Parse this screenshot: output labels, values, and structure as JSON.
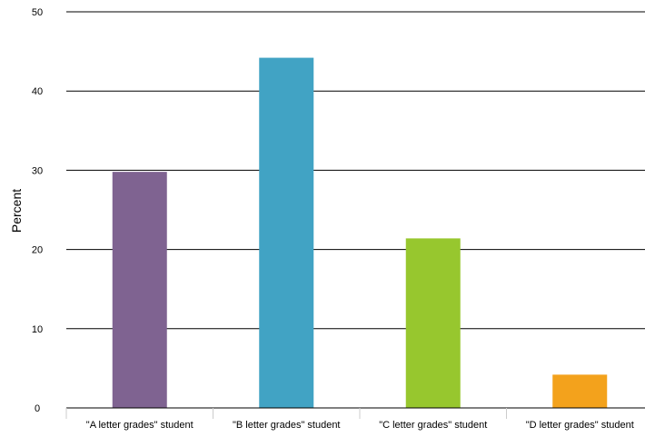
{
  "chart_data": {
    "type": "bar",
    "ylabel": "Percent",
    "xlabel": "",
    "ylim": [
      0,
      50
    ],
    "yticks": [
      "0",
      "10",
      "20",
      "30",
      "40",
      "50"
    ],
    "categories": [
      "\"A letter grades\" student",
      "\"B letter grades\" student",
      "\"C letter grades\" student",
      "\"D letter grades\" student"
    ],
    "values": [
      29.8,
      44.2,
      21.4,
      4.2
    ],
    "colors": [
      "#7f6391",
      "#41a3c4",
      "#97c72e",
      "#f3a21c"
    ],
    "grid": true,
    "legend": "none"
  }
}
